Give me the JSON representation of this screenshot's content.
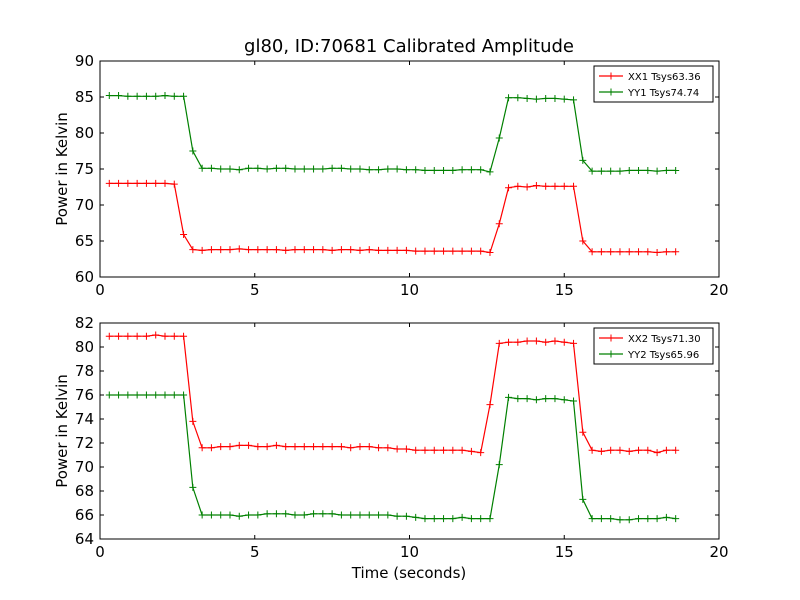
{
  "chart_data": [
    {
      "type": "line",
      "title": "gl80, ID:70681 Calibrated Amplitude",
      "xlabel": "",
      "ylabel": "Power in Kelvin",
      "xlim": [
        0,
        20
      ],
      "ylim": [
        60,
        90
      ],
      "xticks": [
        0,
        5,
        10,
        15,
        20
      ],
      "yticks": [
        60,
        65,
        70,
        75,
        80,
        85,
        90
      ],
      "legend_position": "top-right",
      "grid": false,
      "x": [
        0.3,
        0.6,
        0.9,
        1.2,
        1.5,
        1.8,
        2.1,
        2.4,
        2.7,
        3.0,
        3.3,
        3.6,
        3.9,
        4.2,
        4.5,
        4.8,
        5.1,
        5.4,
        5.7,
        6.0,
        6.3,
        6.6,
        6.9,
        7.2,
        7.5,
        7.8,
        8.1,
        8.4,
        8.7,
        9.0,
        9.3,
        9.6,
        9.9,
        10.2,
        10.5,
        10.8,
        11.1,
        11.4,
        11.7,
        12.0,
        12.3,
        12.6,
        12.9,
        13.2,
        13.5,
        13.8,
        14.1,
        14.4,
        14.7,
        15.0,
        15.3,
        15.6,
        15.9,
        16.2,
        16.5,
        16.8,
        17.1,
        17.4,
        17.7,
        18.0,
        18.3,
        18.6
      ],
      "series": [
        {
          "name": "XX1 Tsys63.36",
          "color": "#ff0000",
          "values": [
            73.0,
            73.0,
            73.0,
            73.0,
            73.0,
            73.0,
            73.0,
            72.9,
            65.9,
            63.8,
            63.7,
            63.8,
            63.8,
            63.8,
            63.9,
            63.8,
            63.8,
            63.8,
            63.8,
            63.7,
            63.8,
            63.8,
            63.8,
            63.8,
            63.7,
            63.8,
            63.8,
            63.7,
            63.8,
            63.7,
            63.7,
            63.7,
            63.7,
            63.6,
            63.6,
            63.6,
            63.6,
            63.6,
            63.6,
            63.6,
            63.6,
            63.4,
            67.4,
            72.4,
            72.6,
            72.5,
            72.7,
            72.6,
            72.6,
            72.6,
            72.6,
            65.0,
            63.5,
            63.5,
            63.5,
            63.5,
            63.5,
            63.5,
            63.5,
            63.4,
            63.5,
            63.5
          ]
        },
        {
          "name": "YY1 Tsys74.74",
          "color": "#008000",
          "values": [
            85.2,
            85.2,
            85.1,
            85.1,
            85.1,
            85.1,
            85.2,
            85.1,
            85.1,
            77.5,
            75.1,
            75.1,
            75.0,
            75.0,
            74.9,
            75.1,
            75.1,
            75.0,
            75.1,
            75.1,
            75.0,
            75.0,
            75.0,
            75.0,
            75.1,
            75.1,
            75.0,
            75.0,
            74.9,
            74.9,
            75.0,
            75.0,
            74.9,
            74.9,
            74.8,
            74.8,
            74.8,
            74.8,
            74.9,
            74.9,
            74.9,
            74.6,
            79.3,
            84.9,
            84.9,
            84.8,
            84.7,
            84.8,
            84.8,
            84.7,
            84.6,
            76.2,
            74.7,
            74.7,
            74.7,
            74.7,
            74.8,
            74.8,
            74.8,
            74.7,
            74.8,
            74.8
          ]
        }
      ]
    },
    {
      "type": "line",
      "title": "",
      "xlabel": "Time (seconds)",
      "ylabel": "Power in Kelvin",
      "xlim": [
        0,
        20
      ],
      "ylim": [
        64,
        82
      ],
      "xticks": [
        0,
        5,
        10,
        15,
        20
      ],
      "yticks": [
        64,
        66,
        68,
        70,
        72,
        74,
        76,
        78,
        80,
        82
      ],
      "legend_position": "top-right",
      "grid": false,
      "x": [
        0.3,
        0.6,
        0.9,
        1.2,
        1.5,
        1.8,
        2.1,
        2.4,
        2.7,
        3.0,
        3.3,
        3.6,
        3.9,
        4.2,
        4.5,
        4.8,
        5.1,
        5.4,
        5.7,
        6.0,
        6.3,
        6.6,
        6.9,
        7.2,
        7.5,
        7.8,
        8.1,
        8.4,
        8.7,
        9.0,
        9.3,
        9.6,
        9.9,
        10.2,
        10.5,
        10.8,
        11.1,
        11.4,
        11.7,
        12.0,
        12.3,
        12.6,
        12.9,
        13.2,
        13.5,
        13.8,
        14.1,
        14.4,
        14.7,
        15.0,
        15.3,
        15.6,
        15.9,
        16.2,
        16.5,
        16.8,
        17.1,
        17.4,
        17.7,
        18.0,
        18.3,
        18.6
      ],
      "series": [
        {
          "name": "XX2 Tsys71.30",
          "color": "#ff0000",
          "values": [
            80.9,
            80.9,
            80.9,
            80.9,
            80.9,
            81.0,
            80.9,
            80.9,
            80.9,
            73.8,
            71.6,
            71.6,
            71.7,
            71.7,
            71.8,
            71.8,
            71.7,
            71.7,
            71.8,
            71.7,
            71.7,
            71.7,
            71.7,
            71.7,
            71.7,
            71.7,
            71.6,
            71.7,
            71.7,
            71.6,
            71.6,
            71.5,
            71.5,
            71.4,
            71.4,
            71.4,
            71.4,
            71.4,
            71.4,
            71.3,
            71.2,
            75.2,
            80.3,
            80.4,
            80.4,
            80.5,
            80.5,
            80.4,
            80.5,
            80.4,
            80.3,
            72.9,
            71.4,
            71.3,
            71.4,
            71.4,
            71.3,
            71.4,
            71.4,
            71.2,
            71.4,
            71.4
          ]
        },
        {
          "name": "YY2 Tsys65.96",
          "color": "#008000",
          "values": [
            76.0,
            76.0,
            76.0,
            76.0,
            76.0,
            76.0,
            76.0,
            76.0,
            76.0,
            68.3,
            66.0,
            66.0,
            66.0,
            66.0,
            65.9,
            66.0,
            66.0,
            66.1,
            66.1,
            66.1,
            66.0,
            66.0,
            66.1,
            66.1,
            66.1,
            66.0,
            66.0,
            66.0,
            66.0,
            66.0,
            66.0,
            65.9,
            65.9,
            65.8,
            65.7,
            65.7,
            65.7,
            65.7,
            65.8,
            65.7,
            65.7,
            65.7,
            70.2,
            75.8,
            75.7,
            75.7,
            75.6,
            75.7,
            75.7,
            75.6,
            75.5,
            67.3,
            65.7,
            65.7,
            65.7,
            65.6,
            65.6,
            65.7,
            65.7,
            65.7,
            65.8,
            65.7
          ]
        }
      ]
    }
  ]
}
